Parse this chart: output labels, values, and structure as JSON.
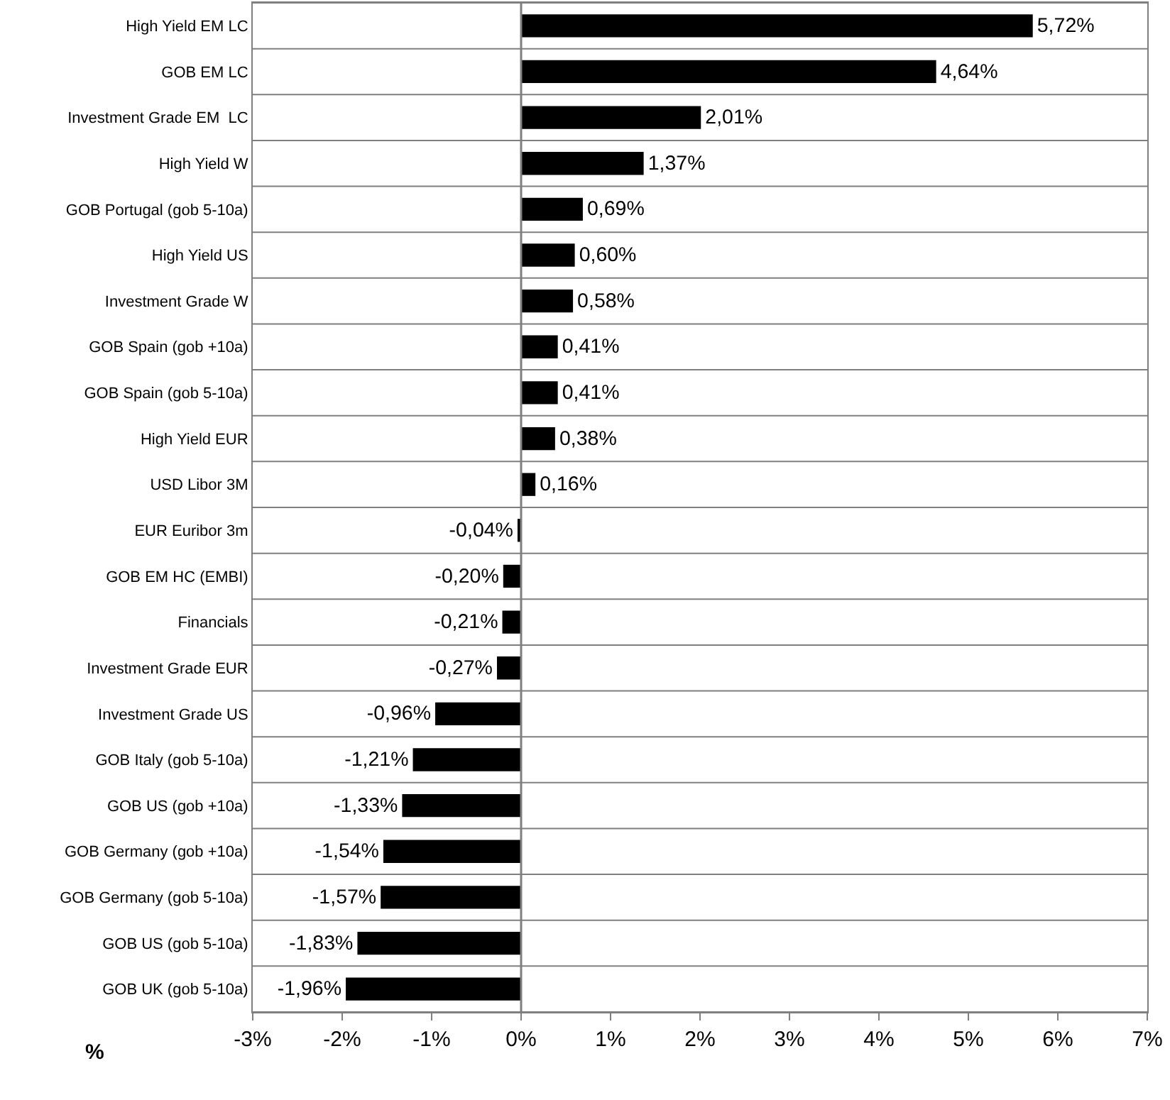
{
  "chart_data": {
    "type": "bar",
    "orientation": "horizontal",
    "xlabel": "%",
    "categories": [
      "High Yield EM LC",
      "GOB EM LC",
      "Investment Grade EM  LC",
      "High Yield W",
      "GOB Portugal (gob 5-10a)",
      "High Yield US",
      "Investment Grade W",
      "GOB Spain (gob +10a)",
      "GOB Spain (gob 5-10a)",
      "High Yield EUR",
      "USD Libor 3M",
      "EUR Euribor 3m",
      "GOB EM HC (EMBI)",
      "Financials",
      "Investment Grade EUR",
      "Investment Grade US",
      "GOB Italy (gob 5-10a)",
      "GOB US (gob +10a)",
      "GOB Germany (gob +10a)",
      "GOB Germany (gob 5-10a)",
      "GOB US (gob 5-10a)",
      "GOB UK (gob 5-10a)"
    ],
    "values": [
      5.72,
      4.64,
      2.01,
      1.37,
      0.69,
      0.6,
      0.58,
      0.41,
      0.41,
      0.38,
      0.16,
      -0.04,
      -0.2,
      -0.21,
      -0.27,
      -0.96,
      -1.21,
      -1.33,
      -1.54,
      -1.57,
      -1.83,
      -1.96
    ],
    "value_labels": [
      "5,72%",
      "4,64%",
      "2,01%",
      "1,37%",
      "0,69%",
      "0,60%",
      "0,58%",
      "0,41%",
      "0,41%",
      "0,38%",
      "0,16%",
      "-0,04%",
      "-0,20%",
      "-0,21%",
      "-0,27%",
      "-0,96%",
      "-1,21%",
      "-1,33%",
      "-1,54%",
      "-1,57%",
      "-1,83%",
      "-1,96%"
    ],
    "color": "#000000",
    "xlim": [
      -3,
      7
    ],
    "xticks": [
      {
        "value": -3,
        "label": "-3%"
      },
      {
        "value": -2,
        "label": "-2%"
      },
      {
        "value": -1,
        "label": "-1%"
      },
      {
        "value": 0,
        "label": "0%"
      },
      {
        "value": 1,
        "label": "1%"
      },
      {
        "value": 2,
        "label": "2%"
      },
      {
        "value": 3,
        "label": "3%"
      },
      {
        "value": 4,
        "label": "4%"
      },
      {
        "value": 5,
        "label": "5%"
      },
      {
        "value": 6,
        "label": "6%"
      },
      {
        "value": 7,
        "label": "7%"
      }
    ],
    "grid": "y",
    "legend": false
  }
}
